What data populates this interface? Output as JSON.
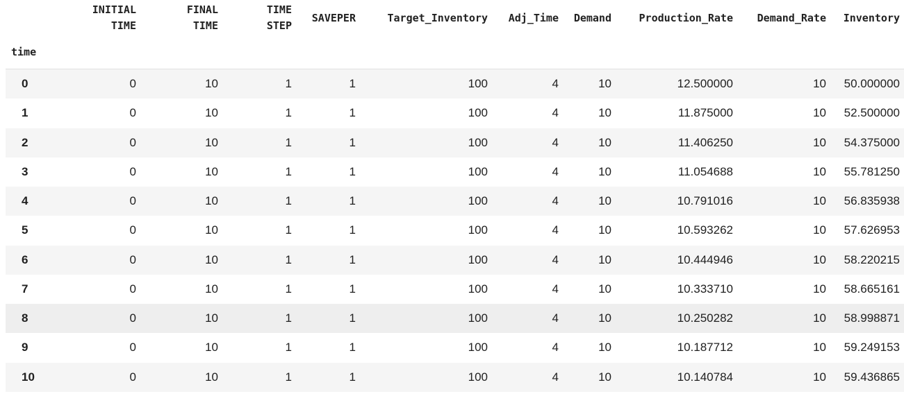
{
  "table": {
    "index_name": "time",
    "columns": [
      {
        "line1": "INITIAL",
        "line2": "TIME"
      },
      {
        "line1": "FINAL",
        "line2": "TIME"
      },
      {
        "line1": "TIME",
        "line2": "STEP"
      },
      {
        "line1": "SAVEPER",
        "line2": ""
      },
      {
        "line1": "Target_Inventory",
        "line2": ""
      },
      {
        "line1": "Adj_Time",
        "line2": ""
      },
      {
        "line1": "Demand",
        "line2": ""
      },
      {
        "line1": "Production_Rate",
        "line2": ""
      },
      {
        "line1": "Demand_Rate",
        "line2": ""
      },
      {
        "line1": "Inventory",
        "line2": ""
      }
    ],
    "rows": [
      {
        "index": "0",
        "cells": [
          "0",
          "10",
          "1",
          "1",
          "100",
          "4",
          "10",
          "12.500000",
          "10",
          "50.000000"
        ]
      },
      {
        "index": "1",
        "cells": [
          "0",
          "10",
          "1",
          "1",
          "100",
          "4",
          "10",
          "11.875000",
          "10",
          "52.500000"
        ]
      },
      {
        "index": "2",
        "cells": [
          "0",
          "10",
          "1",
          "1",
          "100",
          "4",
          "10",
          "11.406250",
          "10",
          "54.375000"
        ]
      },
      {
        "index": "3",
        "cells": [
          "0",
          "10",
          "1",
          "1",
          "100",
          "4",
          "10",
          "11.054688",
          "10",
          "55.781250"
        ]
      },
      {
        "index": "4",
        "cells": [
          "0",
          "10",
          "1",
          "1",
          "100",
          "4",
          "10",
          "10.791016",
          "10",
          "56.835938"
        ]
      },
      {
        "index": "5",
        "cells": [
          "0",
          "10",
          "1",
          "1",
          "100",
          "4",
          "10",
          "10.593262",
          "10",
          "57.626953"
        ]
      },
      {
        "index": "6",
        "cells": [
          "0",
          "10",
          "1",
          "1",
          "100",
          "4",
          "10",
          "10.444946",
          "10",
          "58.220215"
        ]
      },
      {
        "index": "7",
        "cells": [
          "0",
          "10",
          "1",
          "1",
          "100",
          "4",
          "10",
          "10.333710",
          "10",
          "58.665161"
        ]
      },
      {
        "index": "8",
        "cells": [
          "0",
          "10",
          "1",
          "1",
          "100",
          "4",
          "10",
          "10.250282",
          "10",
          "58.998871"
        ],
        "hovered": true
      },
      {
        "index": "9",
        "cells": [
          "0",
          "10",
          "1",
          "1",
          "100",
          "4",
          "10",
          "10.187712",
          "10",
          "59.249153"
        ]
      },
      {
        "index": "10",
        "cells": [
          "0",
          "10",
          "1",
          "1",
          "100",
          "4",
          "10",
          "10.140784",
          "10",
          "59.436865"
        ]
      }
    ]
  },
  "colors": {
    "text": "#212121",
    "row_alt": "#f5f5f5",
    "row_hover": "#eeeeee",
    "header_border": "#e0e0e0"
  }
}
